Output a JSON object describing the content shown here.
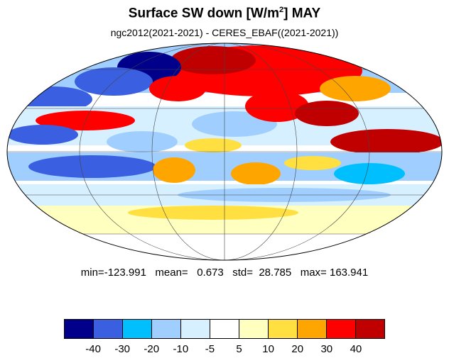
{
  "title": {
    "main": "Surface SW down [W/m",
    "sup": "2",
    "rest": "]  MAY"
  },
  "subtitle": "ngc2012(2021-2021) - CERES_EBAF((2021-2021))",
  "stats": {
    "text": "min=-123.991   mean=   0.673   std=  28.785   max= 163.941",
    "min": -123.991,
    "mean": 0.673,
    "std": 28.785,
    "max": 163.941
  },
  "map": {
    "projection": "mollweide",
    "grid": true
  },
  "colorbar": {
    "colors": [
      "#00008b",
      "#3a5fe0",
      "#00bfff",
      "#a0cfff",
      "#d6f0ff",
      "#ffffff",
      "#ffffc0",
      "#ffe040",
      "#ffa500",
      "#ff0000",
      "#c00000"
    ],
    "labels": [
      "-40",
      "-30",
      "-20",
      "-10",
      "-5",
      "5",
      "10",
      "20",
      "30",
      "40"
    ]
  }
}
